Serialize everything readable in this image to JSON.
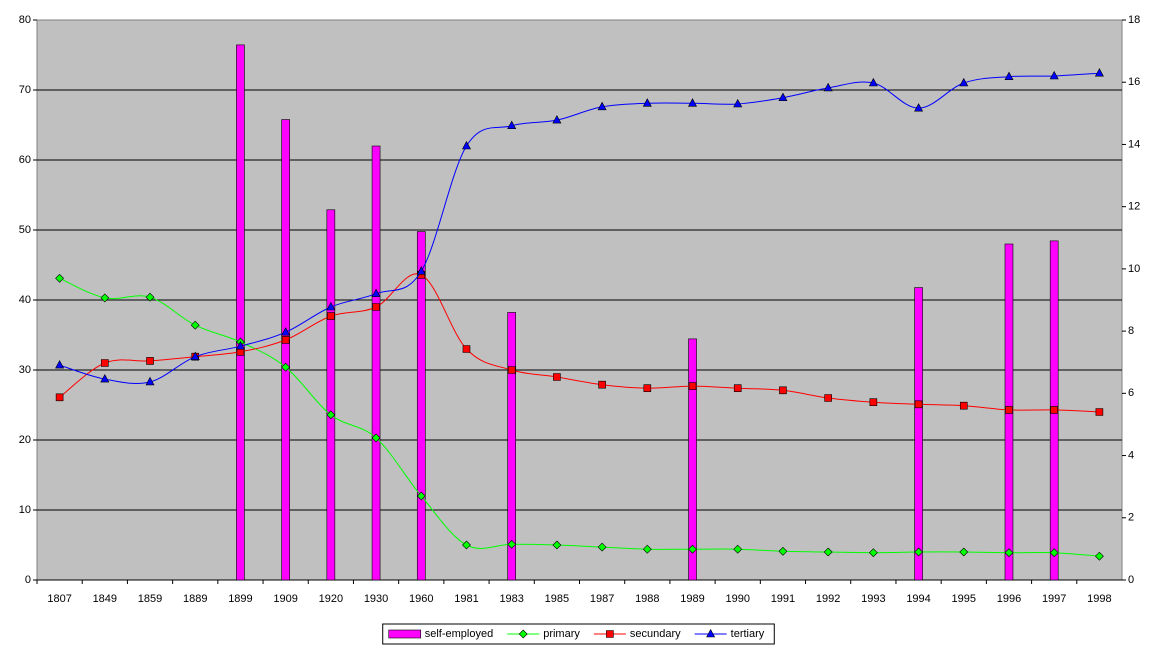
{
  "chart_data": {
    "type": "combo",
    "categories": [
      "1807",
      "1849",
      "1859",
      "1889",
      "1899",
      "1909",
      "1920",
      "1930",
      "1960",
      "1981",
      "1983",
      "1985",
      "1987",
      "1988",
      "1989",
      "1990",
      "1991",
      "1992",
      "1993",
      "1994",
      "1995",
      "1996",
      "1997",
      "1998"
    ],
    "ylim": [
      0,
      80
    ],
    "yticks": [
      0,
      10,
      20,
      30,
      40,
      50,
      60,
      70,
      80
    ],
    "y2lim": [
      0,
      18
    ],
    "y2ticks": [
      0,
      2,
      4,
      6,
      8,
      10,
      12,
      14,
      16,
      18
    ],
    "grid": true,
    "legend": "bottom",
    "series": [
      {
        "name": "self-employed",
        "type": "bar",
        "axis": "y2",
        "color": "#ff00ff",
        "values": [
          null,
          null,
          null,
          null,
          17.2,
          14.8,
          11.9,
          13.95,
          11.2,
          null,
          8.6,
          null,
          null,
          null,
          7.75,
          null,
          null,
          null,
          null,
          9.4,
          null,
          10.8,
          10.9,
          null
        ]
      },
      {
        "name": "primary",
        "type": "line",
        "marker": "diamond",
        "color": "#00ff00",
        "values": [
          43.1,
          40.3,
          40.4,
          36.4,
          34.0,
          30.4,
          23.6,
          20.3,
          12.0,
          5.0,
          5.1,
          5.0,
          4.7,
          4.4,
          4.4,
          4.4,
          4.1,
          4.0,
          3.9,
          4.0,
          4.0,
          3.9,
          3.9,
          3.4
        ]
      },
      {
        "name": "secundary",
        "type": "line",
        "marker": "square",
        "color": "#ff0000",
        "values": [
          26.1,
          31.0,
          31.3,
          31.9,
          32.6,
          34.3,
          37.7,
          39.0,
          43.6,
          33.0,
          30.0,
          29.0,
          27.9,
          27.4,
          27.7,
          27.4,
          27.1,
          26.0,
          25.4,
          25.1,
          24.9,
          24.3,
          24.3,
          24.0
        ]
      },
      {
        "name": "tertiary",
        "type": "line",
        "marker": "triangle",
        "color": "#0000ff",
        "values": [
          30.7,
          28.7,
          28.3,
          31.9,
          33.4,
          35.4,
          39.0,
          40.9,
          44.1,
          62.0,
          64.9,
          65.7,
          67.6,
          68.1,
          68.1,
          68.0,
          68.9,
          70.3,
          71.0,
          67.4,
          71.0,
          71.9,
          72.0,
          72.4
        ]
      }
    ]
  }
}
